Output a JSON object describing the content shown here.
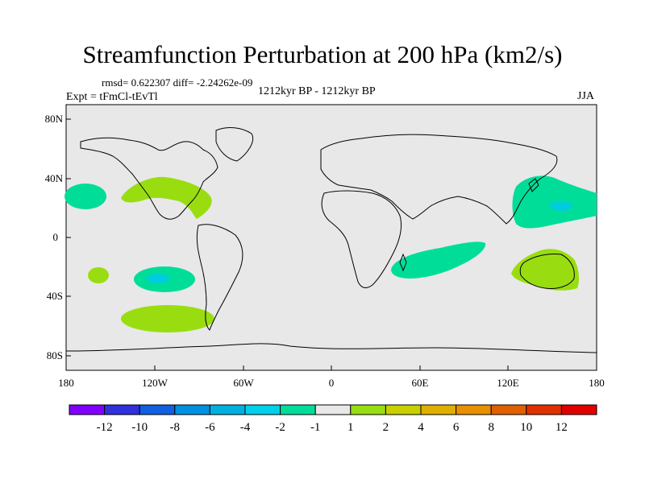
{
  "title": "Streamfunction Perturbation at 200 hPa (km2/s)",
  "stats": "rmsd= 0.622307 diff= -2.24262e-09",
  "experiment": "Expt = tFmCl-tEvTl",
  "period": "1212kyr BP - 1212kyr BP",
  "season": "JJA",
  "colors": {
    "background": "#e8e8e8",
    "coast": "#000000",
    "green_light": "#00dd99",
    "teal": "#00ccdd",
    "lime": "#99dd11"
  },
  "axes": {
    "lat_labels": [
      "80N",
      "40N",
      "0",
      "40S",
      "80S"
    ],
    "lon_labels": [
      "180",
      "120W",
      "60W",
      "0",
      "60E",
      "120E",
      "180"
    ]
  },
  "colorbar": {
    "colors": [
      "#8000ff",
      "#3030dd",
      "#1060e0",
      "#0090e0",
      "#00b0e0",
      "#00d0e8",
      "#00dd99",
      "#e8e8e8",
      "#99dd11",
      "#c8d000",
      "#e0b000",
      "#e89000",
      "#e06000",
      "#e03000",
      "#e00000"
    ],
    "labels": [
      "-12",
      "-10",
      "-8",
      "-6",
      "-4",
      "-2",
      "-1",
      "1",
      "2",
      "4",
      "6",
      "8",
      "10",
      "12"
    ]
  }
}
